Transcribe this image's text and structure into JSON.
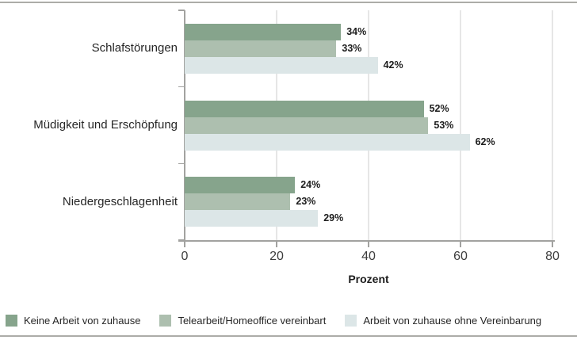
{
  "colors": {
    "series": [
      "#86a48c",
      "#adbfaf",
      "#dce6e7"
    ],
    "axis": "#a2a2a0",
    "grid": "#e6e6e6",
    "rule": "#acaca8",
    "text": "#262626"
  },
  "chart_data": {
    "type": "bar",
    "orientation": "horizontal",
    "categories": [
      "Schlafstörungen",
      "Müdigkeit und Erschöpfung",
      "Niedergeschlagenheit"
    ],
    "series": [
      {
        "name": "Keine Arbeit von zuhause",
        "values": [
          34,
          52,
          24
        ]
      },
      {
        "name": "Telearbeit/Homeoffice vereinbart",
        "values": [
          33,
          53,
          23
        ]
      },
      {
        "name": "Arbeit von zuhause ohne Vereinbarung",
        "values": [
          42,
          62,
          29
        ]
      }
    ],
    "value_suffix": "%",
    "title": "",
    "xlabel": "Prozent",
    "ylabel": "",
    "xlim": [
      0,
      80
    ],
    "xticks": [
      0,
      20,
      40,
      60,
      80
    ],
    "grid": true,
    "legend_position": "bottom"
  }
}
